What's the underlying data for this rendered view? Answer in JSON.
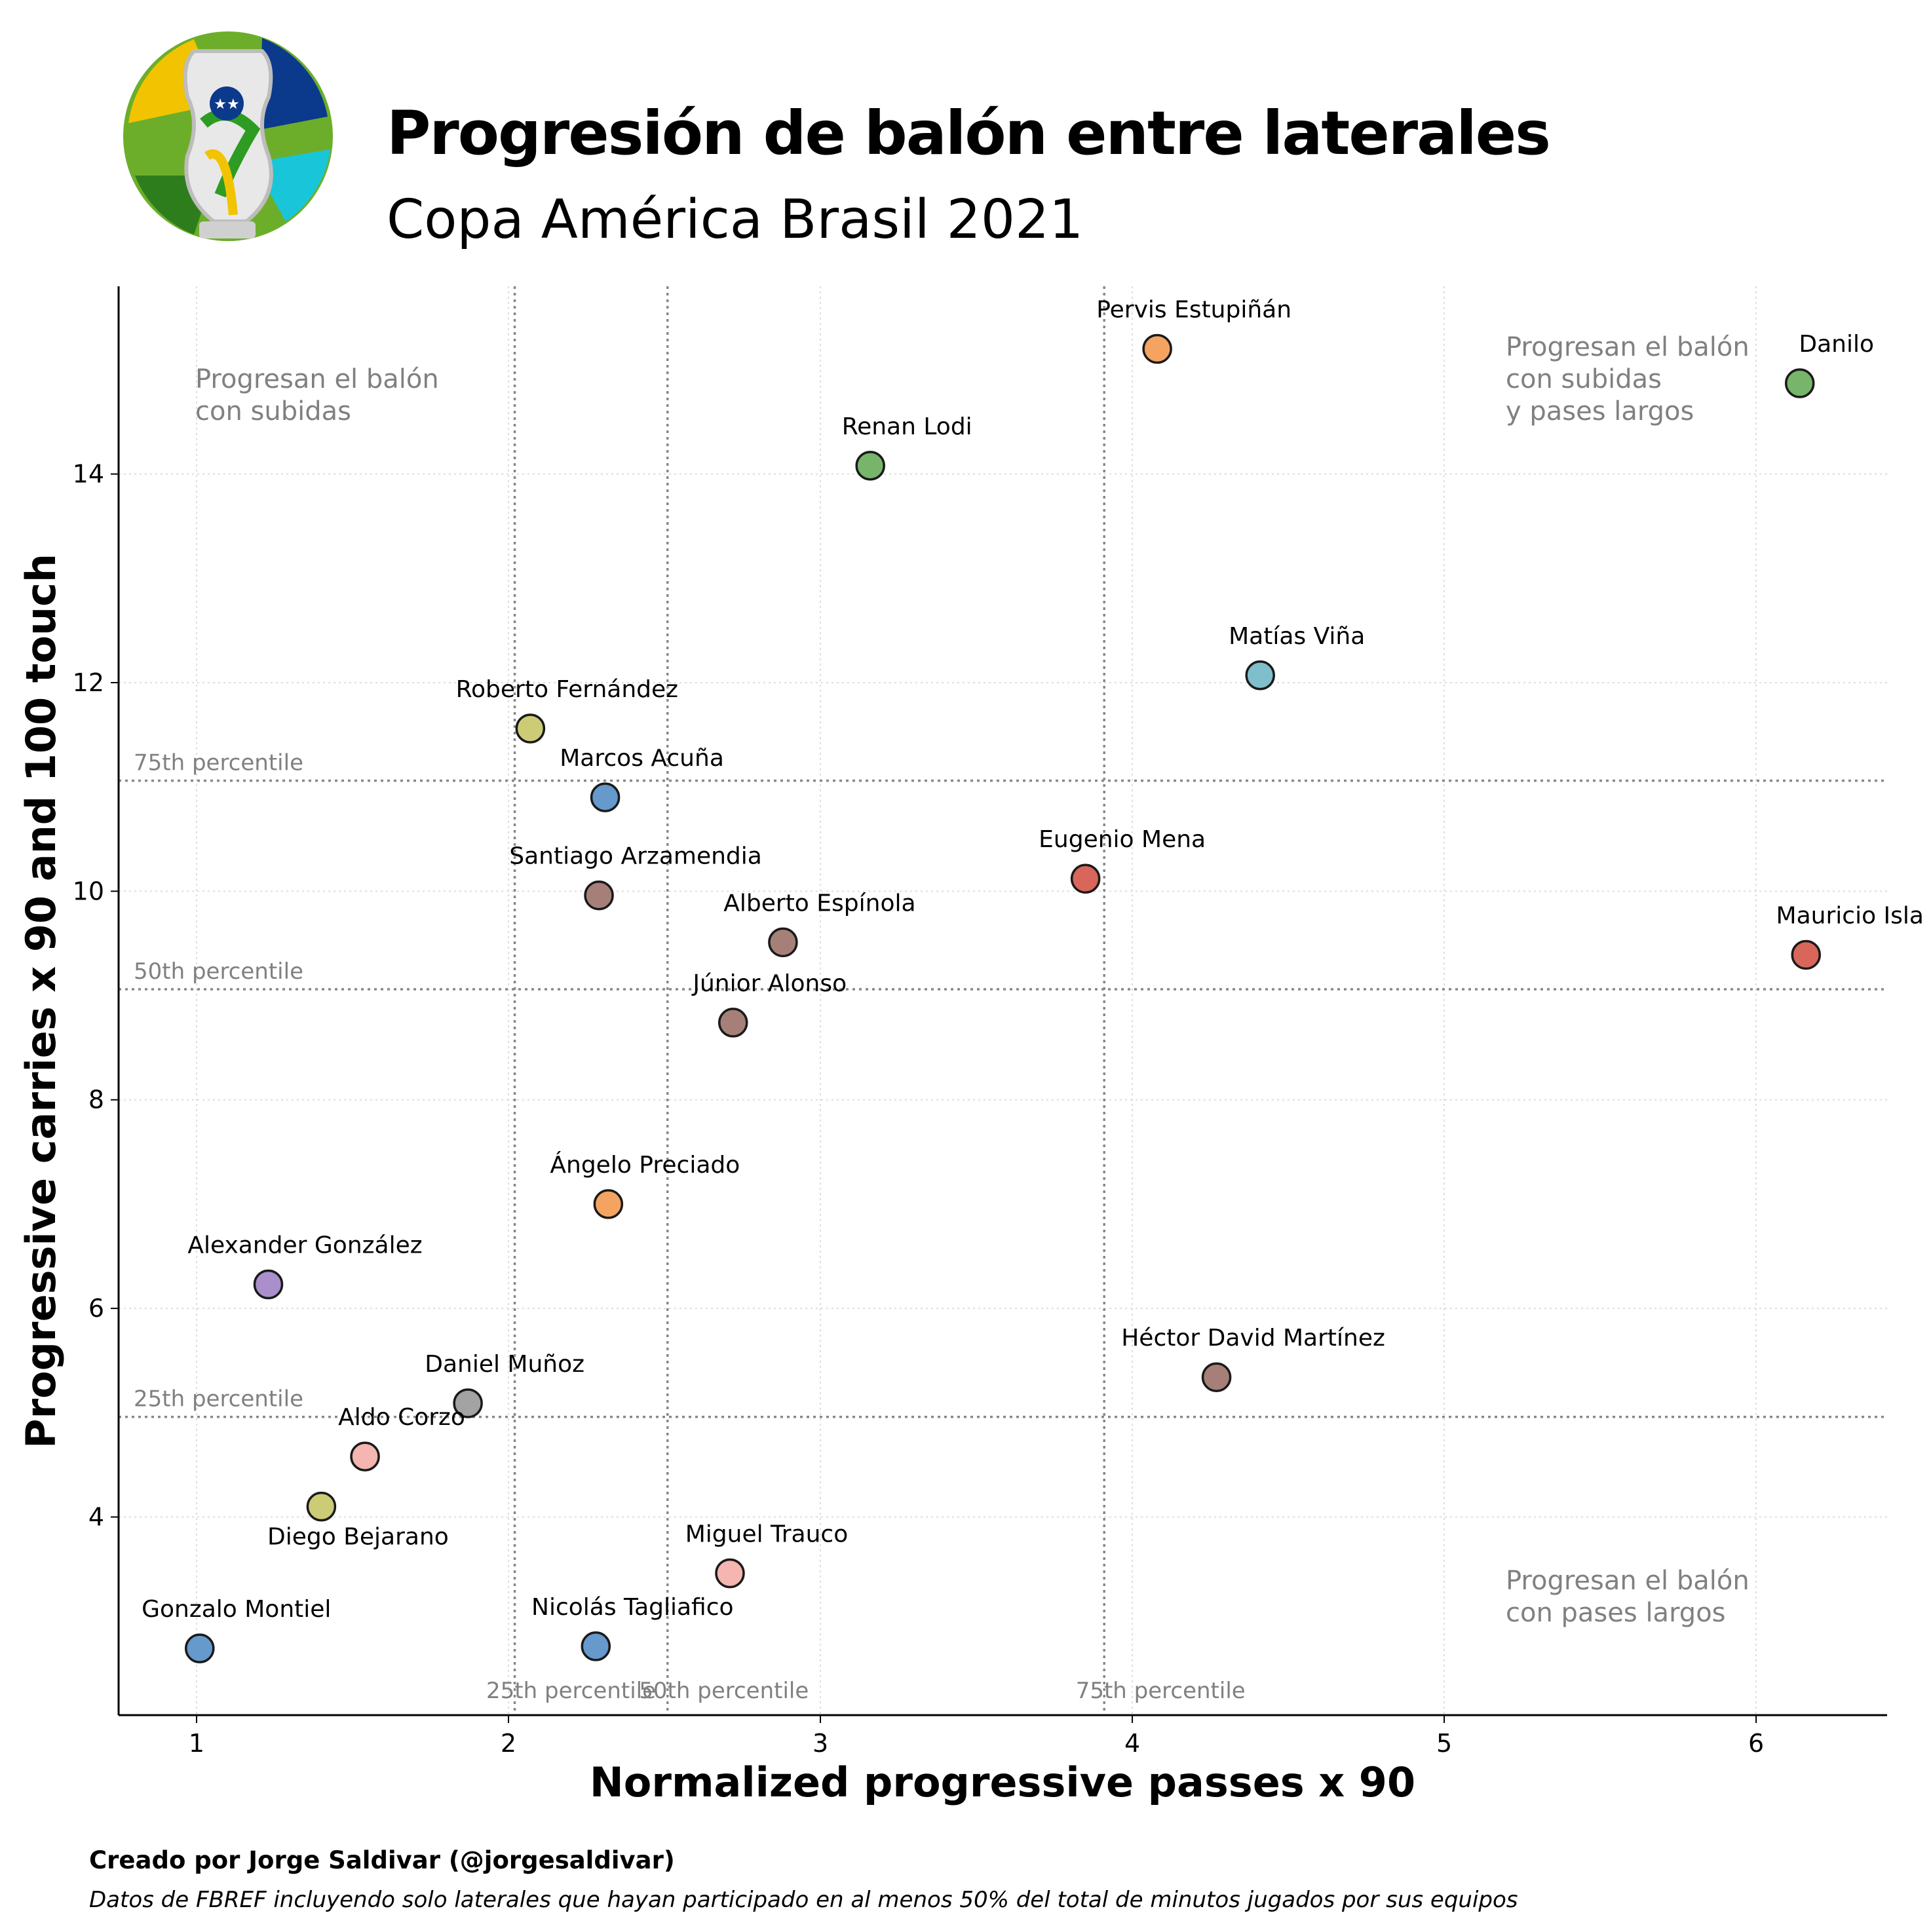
{
  "header": {
    "title": "Progresión de balón entre laterales",
    "subtitle": "Copa América Brasil 2021"
  },
  "footer": {
    "credit": "Creado por Jorge Saldivar (@jorgesaldivar)",
    "source": "Datos de FBREF incluyendo solo laterales que hayan participado en al menos 50% del total de minutos jugados por sus equipos"
  },
  "chart_data": {
    "type": "scatter",
    "xlabel": "Normalized progressive passes x 90",
    "ylabel": "Progressive carries x 90 and 100 touch",
    "xlim": [
      0.75,
      6.42
    ],
    "ylim": [
      2.1,
      15.8
    ],
    "xticks": [
      1,
      2,
      3,
      4,
      5,
      6
    ],
    "yticks": [
      4,
      6,
      8,
      10,
      12,
      14
    ],
    "grid": true,
    "points": [
      {
        "name": "Pervis Estupiñán",
        "x": 4.08,
        "y": 15.2,
        "color": "#f4a460"
      },
      {
        "name": "Danilo",
        "x": 6.14,
        "y": 14.87,
        "color": "#77b56b"
      },
      {
        "name": "Renan Lodi",
        "x": 3.16,
        "y": 14.08,
        "color": "#77b56b"
      },
      {
        "name": "Matías Viña",
        "x": 4.41,
        "y": 12.07,
        "color": "#7fbfcc"
      },
      {
        "name": "Roberto Fernández",
        "x": 2.07,
        "y": 11.56,
        "color": "#cccc77"
      },
      {
        "name": "Marcos Acuña",
        "x": 2.31,
        "y": 10.9,
        "color": "#6699cc"
      },
      {
        "name": "Eugenio Mena",
        "x": 3.85,
        "y": 10.12,
        "color": "#d9665b"
      },
      {
        "name": "Santiago Arzamendia",
        "x": 2.29,
        "y": 9.96,
        "color": "#a68078"
      },
      {
        "name": "Alberto Espínola",
        "x": 2.88,
        "y": 9.51,
        "color": "#a68078"
      },
      {
        "name": "Mauricio Isla",
        "x": 6.16,
        "y": 9.39,
        "color": "#d9665b"
      },
      {
        "name": "Júnior Alonso",
        "x": 2.72,
        "y": 8.74,
        "color": "#a68078"
      },
      {
        "name": "Ángelo Preciado",
        "x": 2.32,
        "y": 7.0,
        "color": "#f4a460"
      },
      {
        "name": "Alexander González",
        "x": 1.23,
        "y": 6.23,
        "color": "#aa8fcc"
      },
      {
        "name": "Héctor David Martínez",
        "x": 4.27,
        "y": 5.34,
        "color": "#a68078"
      },
      {
        "name": "Daniel Muñoz",
        "x": 1.87,
        "y": 5.09,
        "color": "#a3a3a3"
      },
      {
        "name": "Aldo Corzo",
        "x": 1.54,
        "y": 4.58,
        "color": "#f5b5b0"
      },
      {
        "name": "Diego Bejarano",
        "x": 1.4,
        "y": 4.1,
        "color": "#cccc77"
      },
      {
        "name": "Miguel Trauco",
        "x": 2.71,
        "y": 3.46,
        "color": "#f5b5b0"
      },
      {
        "name": "Gonzalo Montiel",
        "x": 1.01,
        "y": 2.74,
        "color": "#6699cc"
      },
      {
        "name": "Nicolás Tagliafico",
        "x": 2.28,
        "y": 2.76,
        "color": "#6699cc"
      }
    ],
    "vlines": [
      {
        "x": 2.02,
        "label": "25th percentile"
      },
      {
        "x": 2.51,
        "label": "50th percentile"
      },
      {
        "x": 3.91,
        "label": "75th percentile"
      }
    ],
    "hlines": [
      {
        "y": 11.06,
        "label": "75th percentile"
      },
      {
        "y": 9.06,
        "label": "50th percentile"
      },
      {
        "y": 4.96,
        "label": "25th percentile"
      }
    ],
    "quadrant_notes": [
      {
        "lines": [
          "Progresan el balón",
          "con subidas"
        ],
        "corner": "top-left"
      },
      {
        "lines": [
          "Progresan el balón",
          "con subidas",
          "y pases largos"
        ],
        "corner": "top-right"
      },
      {
        "lines": [
          "Progresan el balón",
          "con pases largos"
        ],
        "corner": "bottom-right"
      }
    ]
  },
  "colors": {
    "grid": "#dddddd",
    "percentile_lines": "#888888",
    "annotation_text": "#808080",
    "marker_edge": "#1a1a1a"
  }
}
